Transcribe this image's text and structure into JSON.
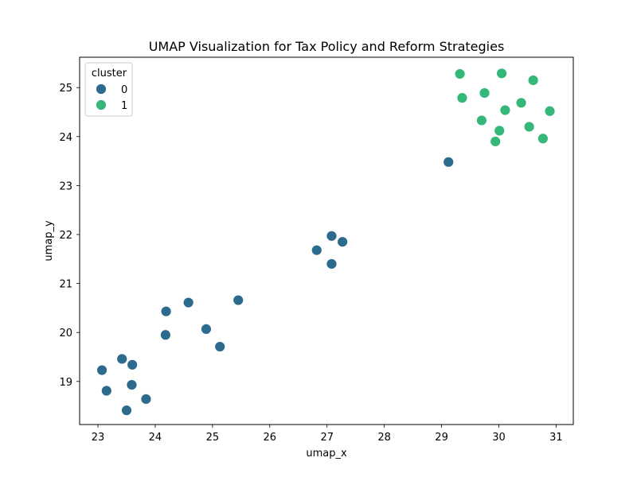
{
  "chart_data": {
    "type": "scatter",
    "title": "UMAP Visualization for Tax Policy and Reform Strategies",
    "xlabel": "umap_x",
    "ylabel": "umap_y",
    "xlim": [
      22.68,
      31.3
    ],
    "ylim": [
      18.12,
      25.62
    ],
    "xticks": [
      23,
      24,
      25,
      26,
      27,
      28,
      29,
      30,
      31
    ],
    "yticks": [
      19,
      20,
      21,
      22,
      23,
      24,
      25
    ],
    "grid": false,
    "legend": {
      "title": "cluster",
      "placement": "top-left"
    },
    "series": [
      {
        "name": "0",
        "color": "#2c6a8e",
        "points": [
          {
            "x": 23.07,
            "y": 19.23
          },
          {
            "x": 23.15,
            "y": 18.81
          },
          {
            "x": 23.42,
            "y": 19.46
          },
          {
            "x": 23.6,
            "y": 19.34
          },
          {
            "x": 23.59,
            "y": 18.93
          },
          {
            "x": 23.5,
            "y": 18.41
          },
          {
            "x": 23.84,
            "y": 18.64
          },
          {
            "x": 24.18,
            "y": 19.95
          },
          {
            "x": 24.19,
            "y": 20.43
          },
          {
            "x": 24.58,
            "y": 20.61
          },
          {
            "x": 24.89,
            "y": 20.07
          },
          {
            "x": 25.13,
            "y": 19.71
          },
          {
            "x": 25.45,
            "y": 20.66
          },
          {
            "x": 26.82,
            "y": 21.68
          },
          {
            "x": 27.08,
            "y": 21.97
          },
          {
            "x": 27.27,
            "y": 21.85
          },
          {
            "x": 27.08,
            "y": 21.4
          },
          {
            "x": 29.12,
            "y": 23.48
          }
        ]
      },
      {
        "name": "1",
        "color": "#35b779",
        "points": [
          {
            "x": 29.32,
            "y": 25.28
          },
          {
            "x": 29.36,
            "y": 24.79
          },
          {
            "x": 29.75,
            "y": 24.89
          },
          {
            "x": 29.7,
            "y": 24.33
          },
          {
            "x": 29.94,
            "y": 23.9
          },
          {
            "x": 30.01,
            "y": 24.12
          },
          {
            "x": 30.05,
            "y": 25.29
          },
          {
            "x": 30.11,
            "y": 24.54
          },
          {
            "x": 30.39,
            "y": 24.69
          },
          {
            "x": 30.53,
            "y": 24.2
          },
          {
            "x": 30.6,
            "y": 25.15
          },
          {
            "x": 30.77,
            "y": 23.96
          },
          {
            "x": 30.89,
            "y": 24.52
          }
        ]
      }
    ]
  }
}
